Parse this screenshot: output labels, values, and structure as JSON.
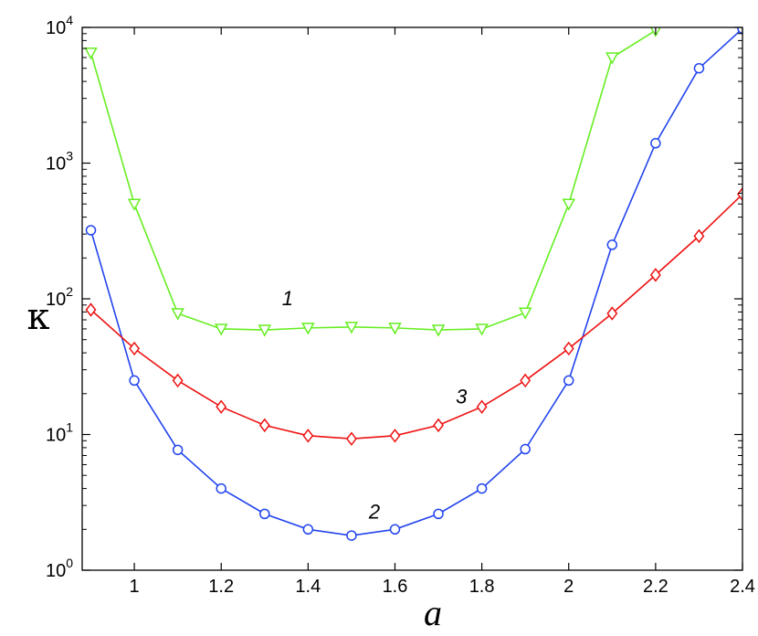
{
  "chart_data": {
    "type": "line",
    "xlabel": "a",
    "ylabel": "κ",
    "xlim": [
      0.88,
      2.4
    ],
    "ylim": [
      1,
      10000
    ],
    "yscale": "log",
    "grid": false,
    "x_ticks": [
      "1",
      "1.2",
      "1.4",
      "1.6",
      "1.8",
      "2",
      "2.2",
      "2.4"
    ],
    "x_tick_values": [
      1,
      1.2,
      1.4,
      1.6,
      1.8,
      2,
      2.2,
      2.4
    ],
    "y_ticks": [
      {
        "base": "10",
        "exp": "0",
        "value": 1
      },
      {
        "base": "10",
        "exp": "1",
        "value": 10
      },
      {
        "base": "10",
        "exp": "2",
        "value": 100
      },
      {
        "base": "10",
        "exp": "3",
        "value": 1000
      },
      {
        "base": "10",
        "exp": "4",
        "value": 10000
      }
    ],
    "series": [
      {
        "label": "1",
        "color": "#66ee22",
        "marker": "triangle-down",
        "x": [
          0.9,
          1.0,
          1.1,
          1.2,
          1.3,
          1.4,
          1.5,
          1.6,
          1.7,
          1.8,
          1.9,
          2.0,
          2.1,
          2.2
        ],
        "y": [
          6500,
          500,
          78,
          60,
          59,
          61,
          62,
          61,
          59,
          60,
          79,
          500,
          6000,
          9500
        ],
        "label_anchor": {
          "x": 1.34,
          "y": 90
        }
      },
      {
        "label": "2",
        "color": "#2244ee",
        "marker": "circle",
        "x": [
          0.9,
          1.0,
          1.1,
          1.2,
          1.3,
          1.4,
          1.5,
          1.6,
          1.7,
          1.8,
          1.9,
          2.0,
          2.1,
          2.2,
          2.3,
          2.4
        ],
        "y": [
          320,
          25,
          7.7,
          4.0,
          2.6,
          2.0,
          1.8,
          2.0,
          2.6,
          4.0,
          7.8,
          25,
          250,
          1400,
          5000,
          9800
        ],
        "label_anchor": {
          "x": 1.54,
          "y": 2.4
        }
      },
      {
        "label": "3",
        "color": "#ee1111",
        "marker": "diamond",
        "x": [
          0.9,
          1.0,
          1.1,
          1.2,
          1.3,
          1.4,
          1.5,
          1.6,
          1.7,
          1.8,
          1.9,
          2.0,
          2.1,
          2.2,
          2.3,
          2.4
        ],
        "y": [
          83,
          43,
          25,
          16,
          11.7,
          9.8,
          9.3,
          9.8,
          11.7,
          16,
          25,
          43,
          78,
          150,
          290,
          590
        ],
        "label_anchor": {
          "x": 1.74,
          "y": 17
        }
      }
    ]
  }
}
